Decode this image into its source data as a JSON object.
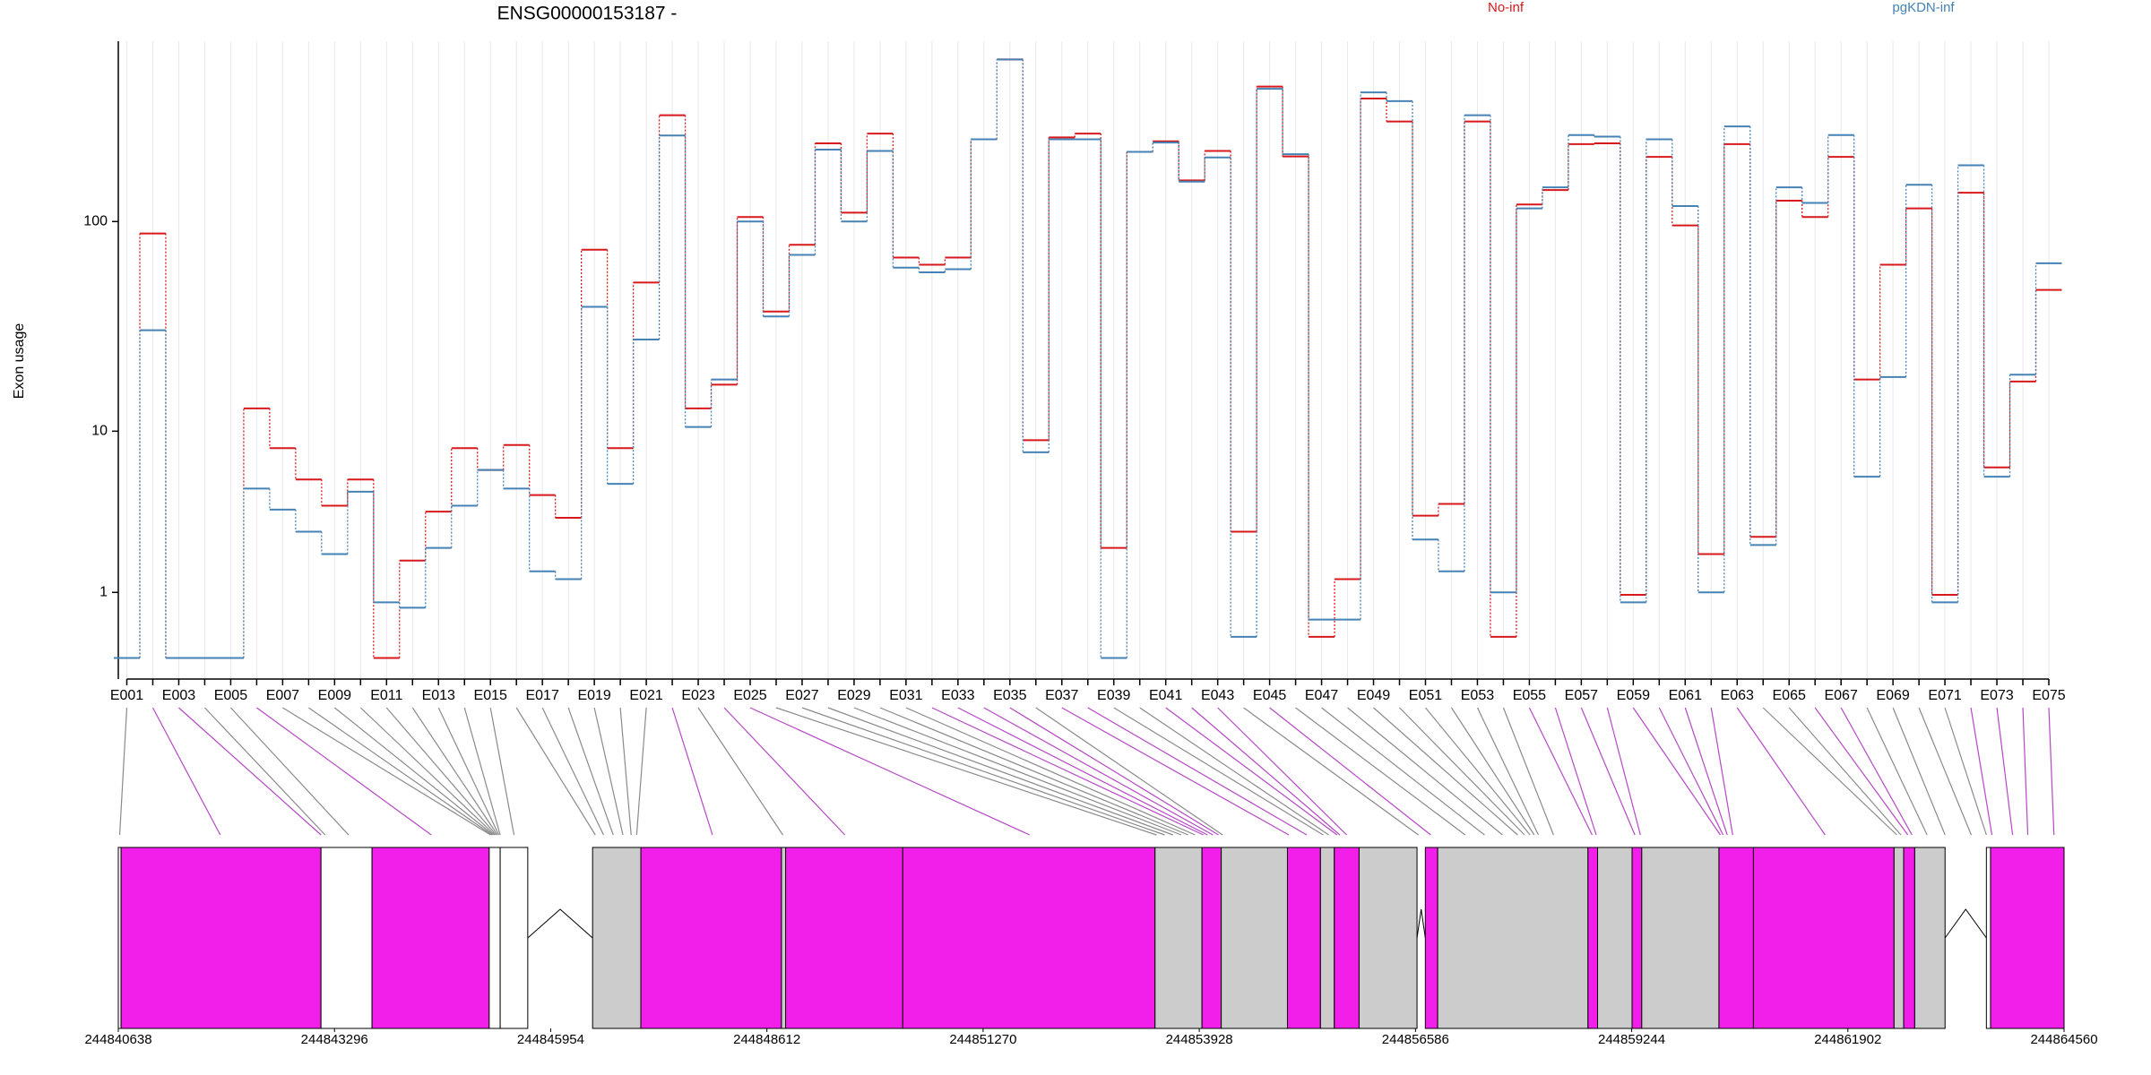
{
  "chart_data": {
    "type": "line",
    "title": "ENSG00000153187 -",
    "ylabel": "Exon usage",
    "yscale": "log1p",
    "grid": true,
    "categories": [
      "E001",
      null,
      "E003",
      null,
      "E005",
      null,
      "E007",
      null,
      "E009",
      null,
      "E011",
      null,
      "E013",
      null,
      "E015",
      null,
      "E017",
      null,
      "E019",
      null,
      "E021",
      null,
      "E023",
      null,
      "E025",
      null,
      "E027",
      null,
      "E029",
      null,
      "E031",
      null,
      "E033",
      null,
      "E035",
      null,
      "E037",
      null,
      "E039",
      null,
      "E041",
      null,
      "E043",
      null,
      "E045",
      null,
      "E047",
      null,
      "E049",
      null,
      "E051",
      null,
      "E053",
      null,
      "E055",
      null,
      "E057",
      null,
      "E059",
      null,
      "E061",
      null,
      "E063",
      null,
      "E065",
      null,
      "E067",
      null,
      "E069",
      null,
      "E071",
      null,
      "E073",
      null,
      "E075"
    ],
    "series": [
      {
        "name": "No-inf",
        "color": "#d7191c",
        "values": [
          0,
          88,
          0,
          0,
          0,
          13,
          8.2,
          5.6,
          4,
          5.6,
          0,
          1.8,
          3.7,
          8.2,
          6.3,
          8.5,
          4.6,
          3.4,
          74,
          8.2,
          52,
          310,
          13,
          17,
          105,
          38,
          78,
          230,
          110,
          255,
          68,
          63,
          68,
          240,
          560,
          9,
          245,
          255,
          2.2,
          210,
          235,
          155,
          212,
          2.8,
          420,
          200,
          0.25,
          1.3,
          370,
          290,
          3.5,
          4.1,
          290,
          0.25,
          120,
          140,
          228,
          230,
          0.95,
          199,
          96,
          2,
          228,
          2.6,
          125,
          105,
          199,
          18,
          63,
          115,
          0.95,
          136,
          6.5,
          17.6,
          48
        ]
      },
      {
        "name": "pgKDN-inf",
        "color": "#4682b4",
        "values": [
          0,
          31,
          0,
          0,
          0,
          5,
          3.8,
          2.8,
          2,
          4.8,
          0.8,
          0.7,
          2.2,
          4,
          6.3,
          5,
          1.5,
          1.3,
          40,
          5.3,
          28,
          250,
          10.5,
          18,
          100,
          36,
          70,
          215,
          100,
          212,
          61,
          58,
          60,
          240,
          560,
          7.8,
          240,
          240,
          0,
          210,
          232,
          153,
          198,
          0.25,
          410,
          205,
          0.5,
          0.5,
          395,
          360,
          2.5,
          1.5,
          310,
          1,
          115,
          144,
          251,
          247,
          0.8,
          240,
          118,
          1,
          275,
          2.3,
          144,
          122,
          251,
          5.8,
          18.5,
          148,
          0.8,
          182,
          5.8,
          19,
          64
        ]
      }
    ],
    "ylim": [
      -0.2,
      660
    ],
    "yticks": [
      1,
      10,
      100
    ],
    "genome_xlim": [
      244840638,
      244864560
    ],
    "genome_xticks": [
      244840638,
      244843296,
      244845954,
      244848612,
      244851270,
      244853928,
      244856586,
      244859244,
      244861902,
      244864560
    ],
    "exon_positions": [
      244840655,
      244841892,
      244843130,
      244843181,
      244843469,
      244844486,
      244845215,
      244845232,
      244845249,
      244845266,
      244845282,
      244845299,
      244845316,
      244845333,
      244845503,
      244846503,
      244846604,
      244846723,
      244846842,
      244846943,
      244847011,
      244847943,
      244848808,
      244849571,
      244851842,
      244853401,
      244853503,
      244853605,
      244853706,
      244853791,
      244853876,
      244853978,
      244854029,
      244854096,
      244854164,
      244854215,
      244855029,
      244855249,
      244855452,
      244855520,
      244855622,
      244855656,
      244855740,
      244856622,
      244856774,
      244857198,
      244857435,
      244857656,
      244857842,
      244857927,
      244857995,
      244858046,
      244858097,
      244858283,
      244858758,
      244858808,
      244859283,
      244859351,
      244860334,
      244860368,
      244860419,
      244860486,
      244861622,
      244862504,
      244862554,
      244862639,
      244862690,
      244862876,
      244863097,
      244863419,
      244863605,
      244863673,
      244863927,
      244864114,
      244864436
    ],
    "gene_model": [
      {
        "start": 244840638,
        "end": 244840672,
        "color": "#ffffff"
      },
      {
        "start": 244840672,
        "end": 244843130,
        "color": "#f21ee9"
      },
      {
        "start": 244843130,
        "end": 244843757,
        "color": "#ffffff"
      },
      {
        "start": 244843757,
        "end": 244845198,
        "color": "#f21ee9"
      },
      {
        "start": 244845198,
        "end": 244845333,
        "color": "#ffffff"
      },
      {
        "start": 244845333,
        "end": 244845672,
        "color": "#ffffff"
      },
      {
        "start": 244846469,
        "end": 244847062,
        "color": "#cccccc"
      },
      {
        "start": 244847062,
        "end": 244848791,
        "color": "#f21ee9"
      },
      {
        "start": 244848791,
        "end": 244848842,
        "color": "#cccccc"
      },
      {
        "start": 244848842,
        "end": 244850283,
        "color": "#f21ee9"
      },
      {
        "start": 244850283,
        "end": 244853384,
        "color": "#f21ee9"
      },
      {
        "start": 244853384,
        "end": 244853961,
        "color": "#cccccc"
      },
      {
        "start": 244853961,
        "end": 244854198,
        "color": "#f21ee9"
      },
      {
        "start": 244854198,
        "end": 244855012,
        "color": "#cccccc"
      },
      {
        "start": 244855012,
        "end": 244855418,
        "color": "#f21ee9"
      },
      {
        "start": 244855418,
        "end": 244855588,
        "color": "#cccccc"
      },
      {
        "start": 244855588,
        "end": 244855893,
        "color": "#f21ee9"
      },
      {
        "start": 244855893,
        "end": 244856605,
        "color": "#cccccc"
      },
      {
        "start": 244856707,
        "end": 244856859,
        "color": "#f21ee9"
      },
      {
        "start": 244856859,
        "end": 244858707,
        "color": "#cccccc"
      },
      {
        "start": 244858707,
        "end": 244858825,
        "color": "#f21ee9"
      },
      {
        "start": 244858825,
        "end": 244859249,
        "color": "#cccccc"
      },
      {
        "start": 244859249,
        "end": 244859368,
        "color": "#f21ee9"
      },
      {
        "start": 244859368,
        "end": 244860317,
        "color": "#cccccc"
      },
      {
        "start": 244860317,
        "end": 244860741,
        "color": "#f21ee9"
      },
      {
        "start": 244860741,
        "end": 244862470,
        "color": "#f21ee9"
      },
      {
        "start": 244862470,
        "end": 244862588,
        "color": "#cccccc"
      },
      {
        "start": 244862588,
        "end": 244862724,
        "color": "#f21ee9"
      },
      {
        "start": 244862724,
        "end": 244863097,
        "color": "#cccccc"
      },
      {
        "start": 244863605,
        "end": 244863656,
        "color": "#ffffff"
      },
      {
        "start": 244863656,
        "end": 244864560,
        "color": "#f21ee9"
      }
    ]
  }
}
